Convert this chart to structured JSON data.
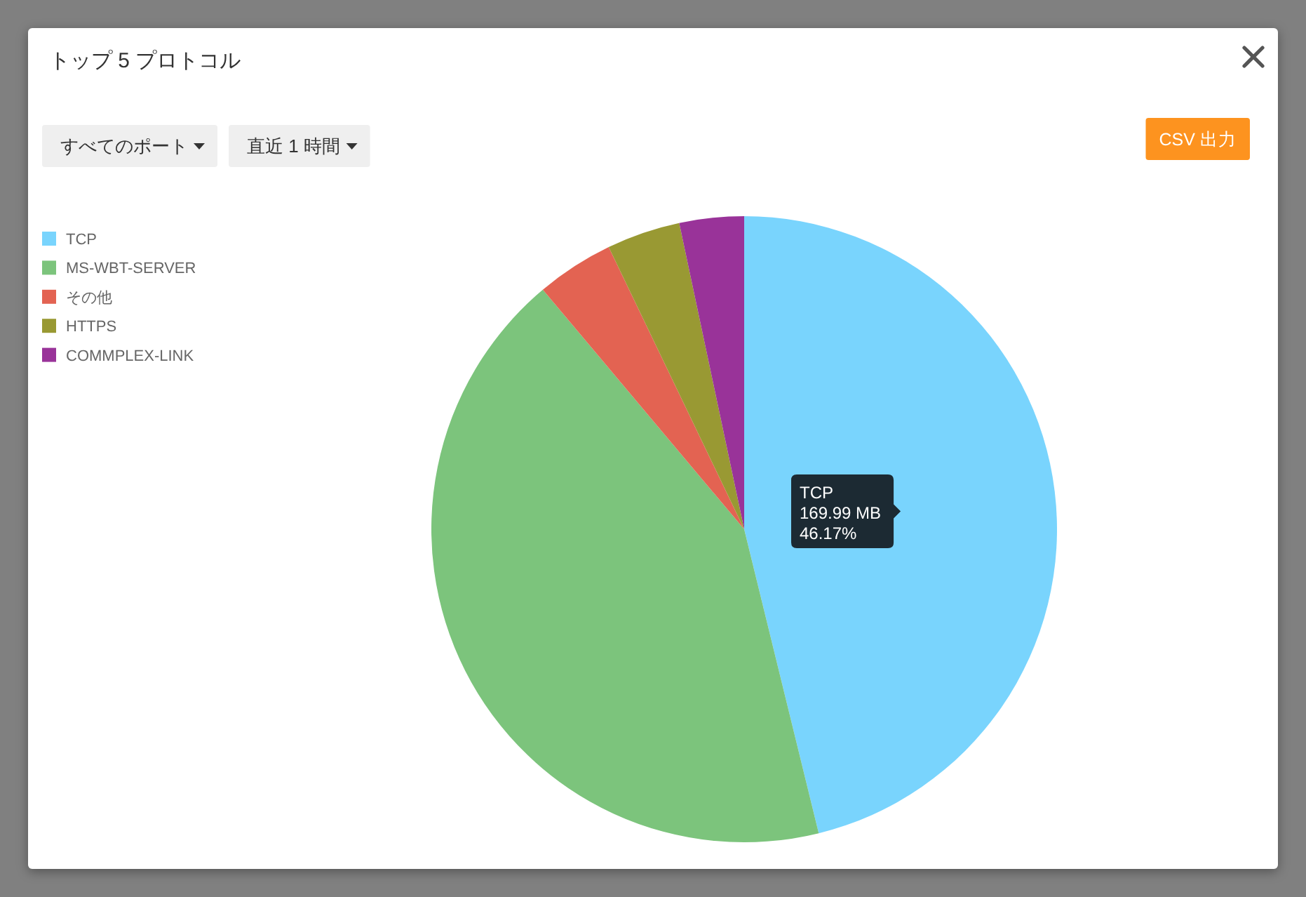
{
  "chart_data": {
    "type": "pie",
    "title": "トップ 5 プロトコル",
    "categories": [
      "TCP",
      "MS-WBT-SERVER",
      "その他",
      "HTTPS",
      "COMMPLEX-LINK"
    ],
    "values": [
      46.17,
      42.7,
      4.0,
      3.8,
      3.33
    ],
    "colors": [
      "#79d4fd",
      "#7cc47c",
      "#e36352",
      "#999933",
      "#993399"
    ],
    "legend": "top left",
    "annotations": [
      "すべてのポート",
      "直近 1 時間",
      "CSV 出力",
      "TCP\n169.99 MB\n46.17%"
    ]
  }
}
